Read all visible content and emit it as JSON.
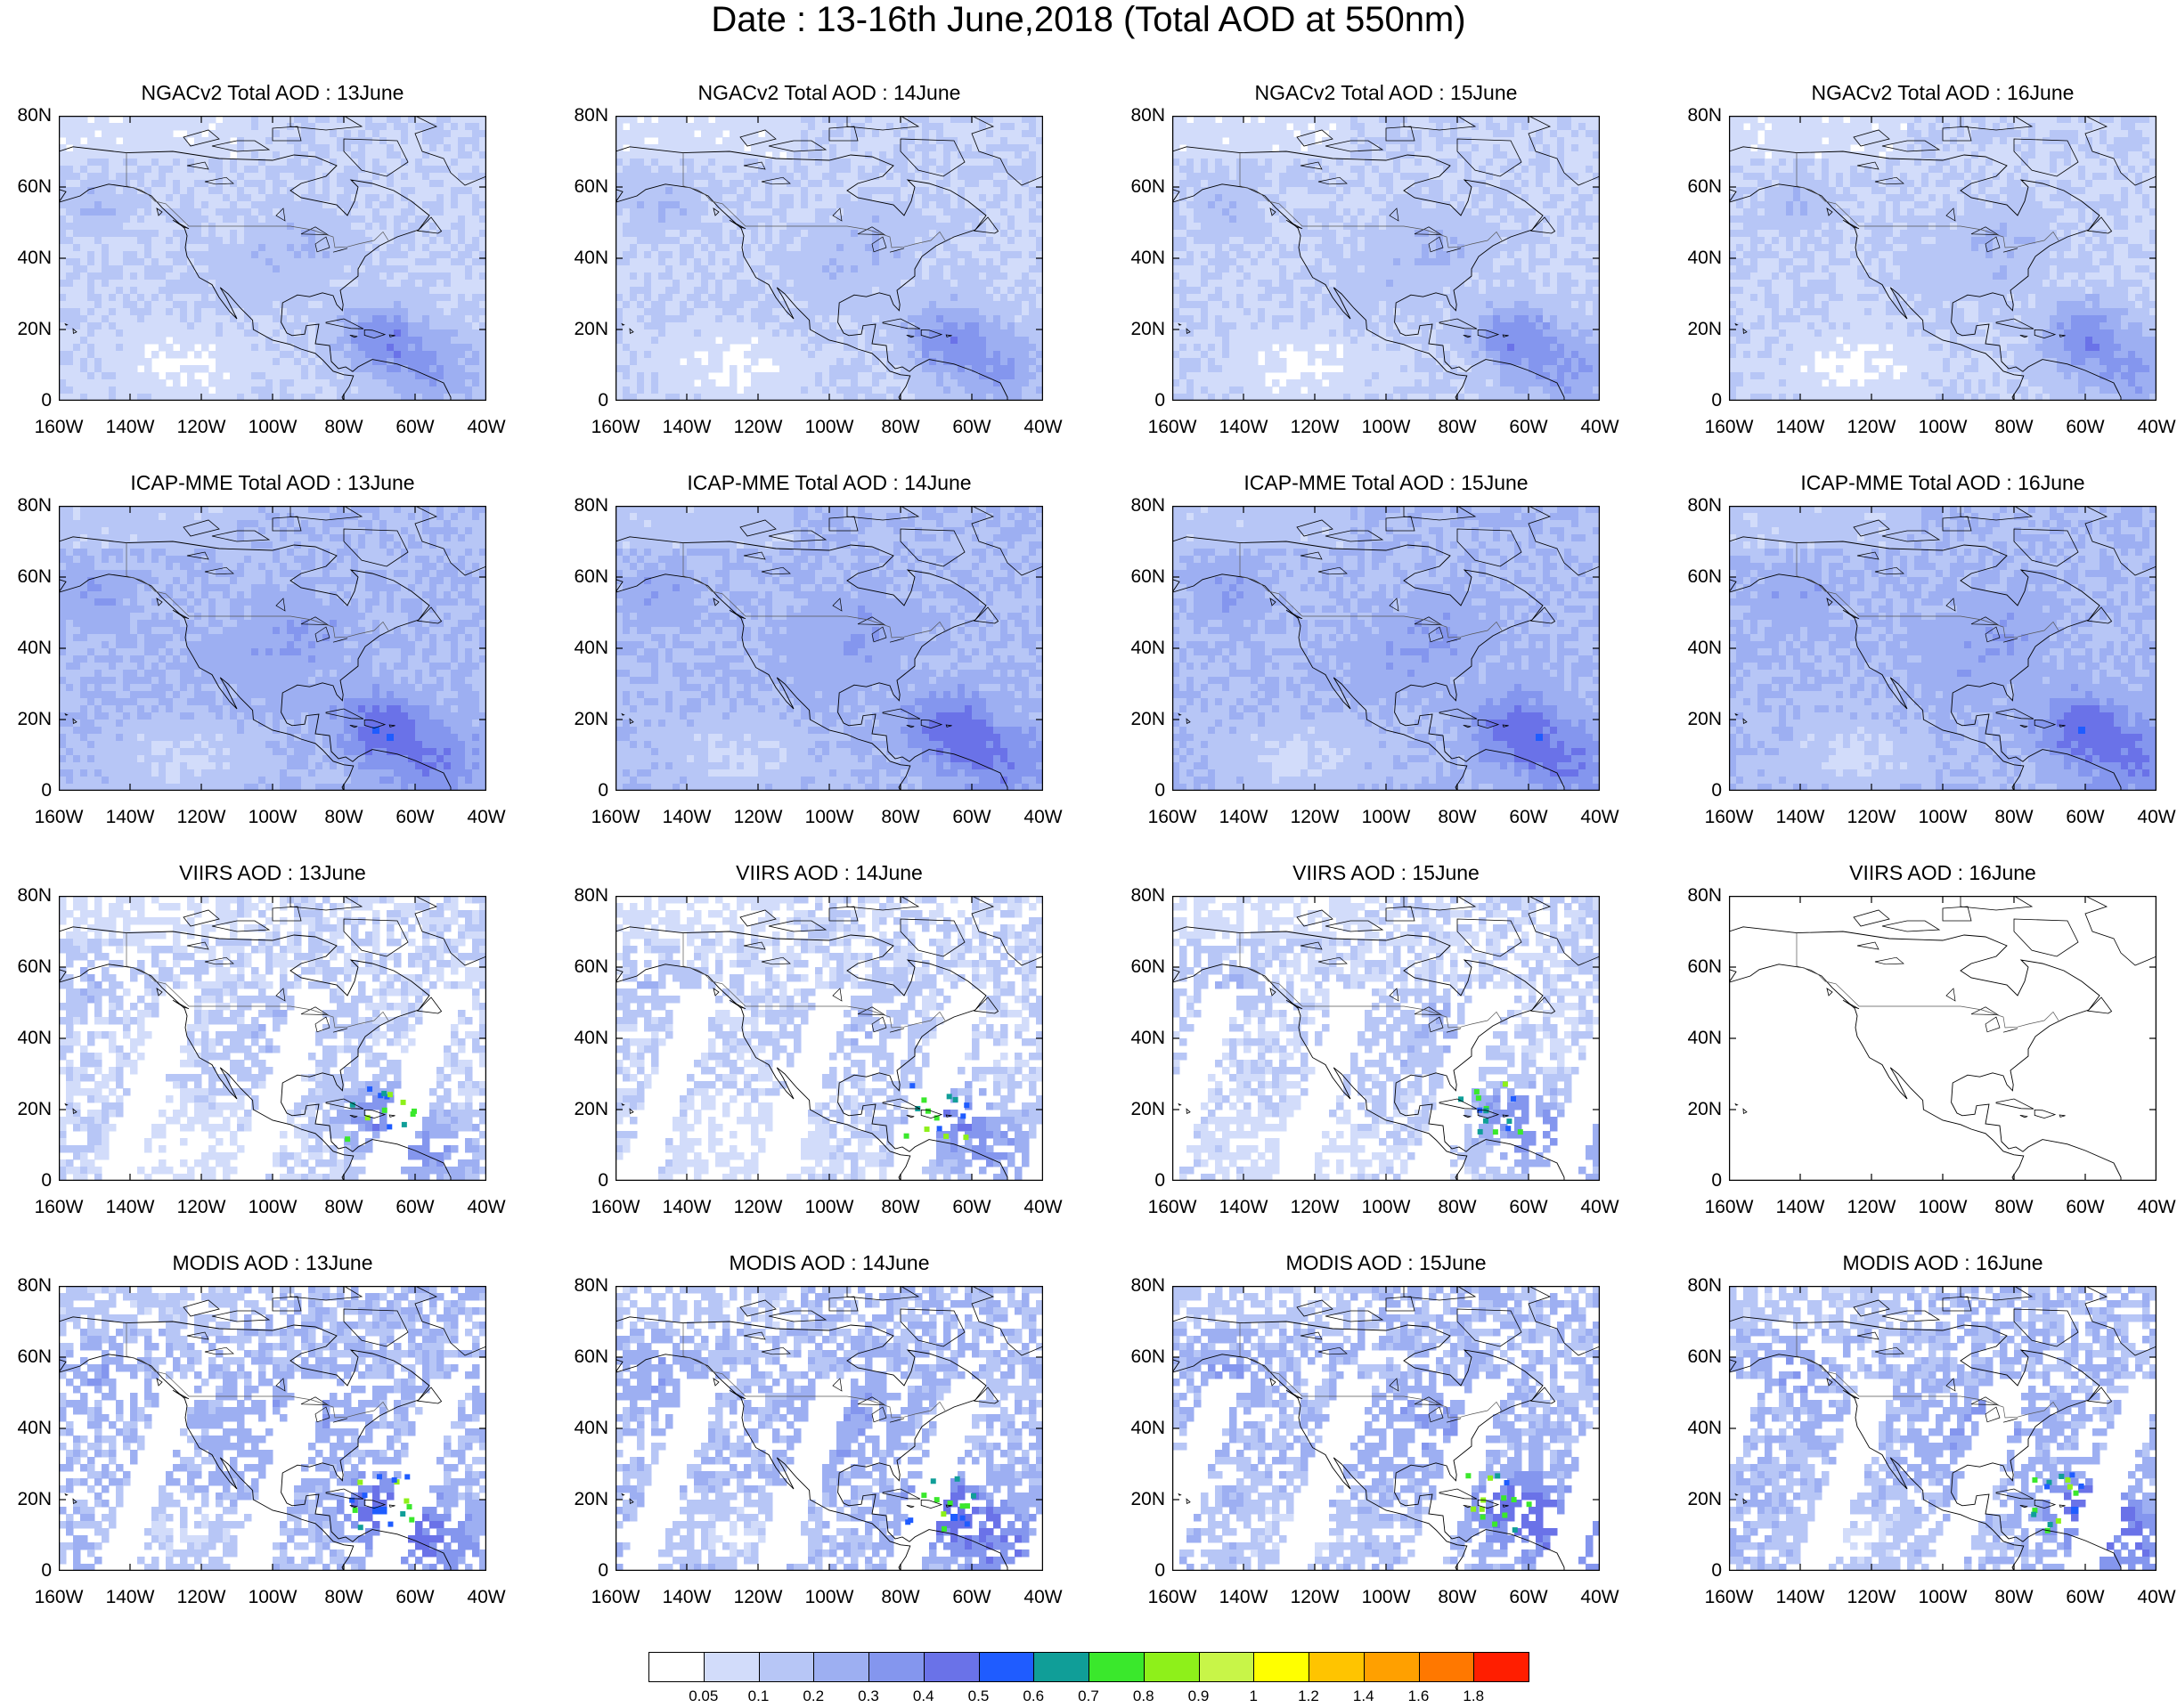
{
  "title": "Date : 13-16th June,2018 (Total AOD at 550nm)",
  "axes": {
    "lon_ticks": [
      "160W",
      "140W",
      "120W",
      "100W",
      "80W",
      "60W",
      "40W"
    ],
    "lat_ticks": [
      "80N",
      "60N",
      "40N",
      "20N",
      "0"
    ],
    "lon_range": [
      -160,
      -40
    ],
    "lat_range": [
      0,
      80
    ]
  },
  "rows": [
    {
      "product": "NGACv2 Total AOD",
      "titles": [
        "NGACv2 Total AOD : 13June",
        "NGACv2 Total AOD : 14June",
        "NGACv2 Total AOD : 15June",
        "NGACv2 Total AOD : 16June"
      ],
      "coverage": "full",
      "base_level": 1
    },
    {
      "product": "ICAP-MME Total AOD",
      "titles": [
        "ICAP-MME Total AOD : 13June",
        "ICAP-MME Total AOD : 14June",
        "ICAP-MME Total AOD : 15June",
        "ICAP-MME Total AOD : 16June"
      ],
      "coverage": "full",
      "base_level": 2
    },
    {
      "product": "VIIRS AOD",
      "titles": [
        "VIIRS AOD : 13June",
        "VIIRS AOD : 14June",
        "VIIRS AOD : 15June",
        "VIIRS AOD : 16June"
      ],
      "coverage": "swath",
      "base_level": 1
    },
    {
      "product": "MODIS AOD",
      "titles": [
        "MODIS AOD : 13June",
        "MODIS AOD : 14June",
        "MODIS AOD : 15June",
        "MODIS AOD : 16June"
      ],
      "coverage": "swath",
      "base_level": 2
    }
  ],
  "colorbar": {
    "labels": [
      "0.05",
      "0.1",
      "0.2",
      "0.3",
      "0.4",
      "0.5",
      "0.6",
      "0.7",
      "0.8",
      "0.9",
      "1",
      "1.2",
      "1.4",
      "1.6",
      "1.8"
    ],
    "colors": [
      "#ffffff",
      "#d2dcfa",
      "#b7c6f6",
      "#9daff2",
      "#8496ee",
      "#6a72e8",
      "#1f5cff",
      "#109e98",
      "#3ae82c",
      "#8ef01a",
      "#c8f548",
      "#ffff00",
      "#ffc400",
      "#ffa000",
      "#ff7800",
      "#ff1e00"
    ]
  },
  "map_colors": {
    "land_outline": "#000000",
    "ocean_background": "#ffffff"
  }
}
